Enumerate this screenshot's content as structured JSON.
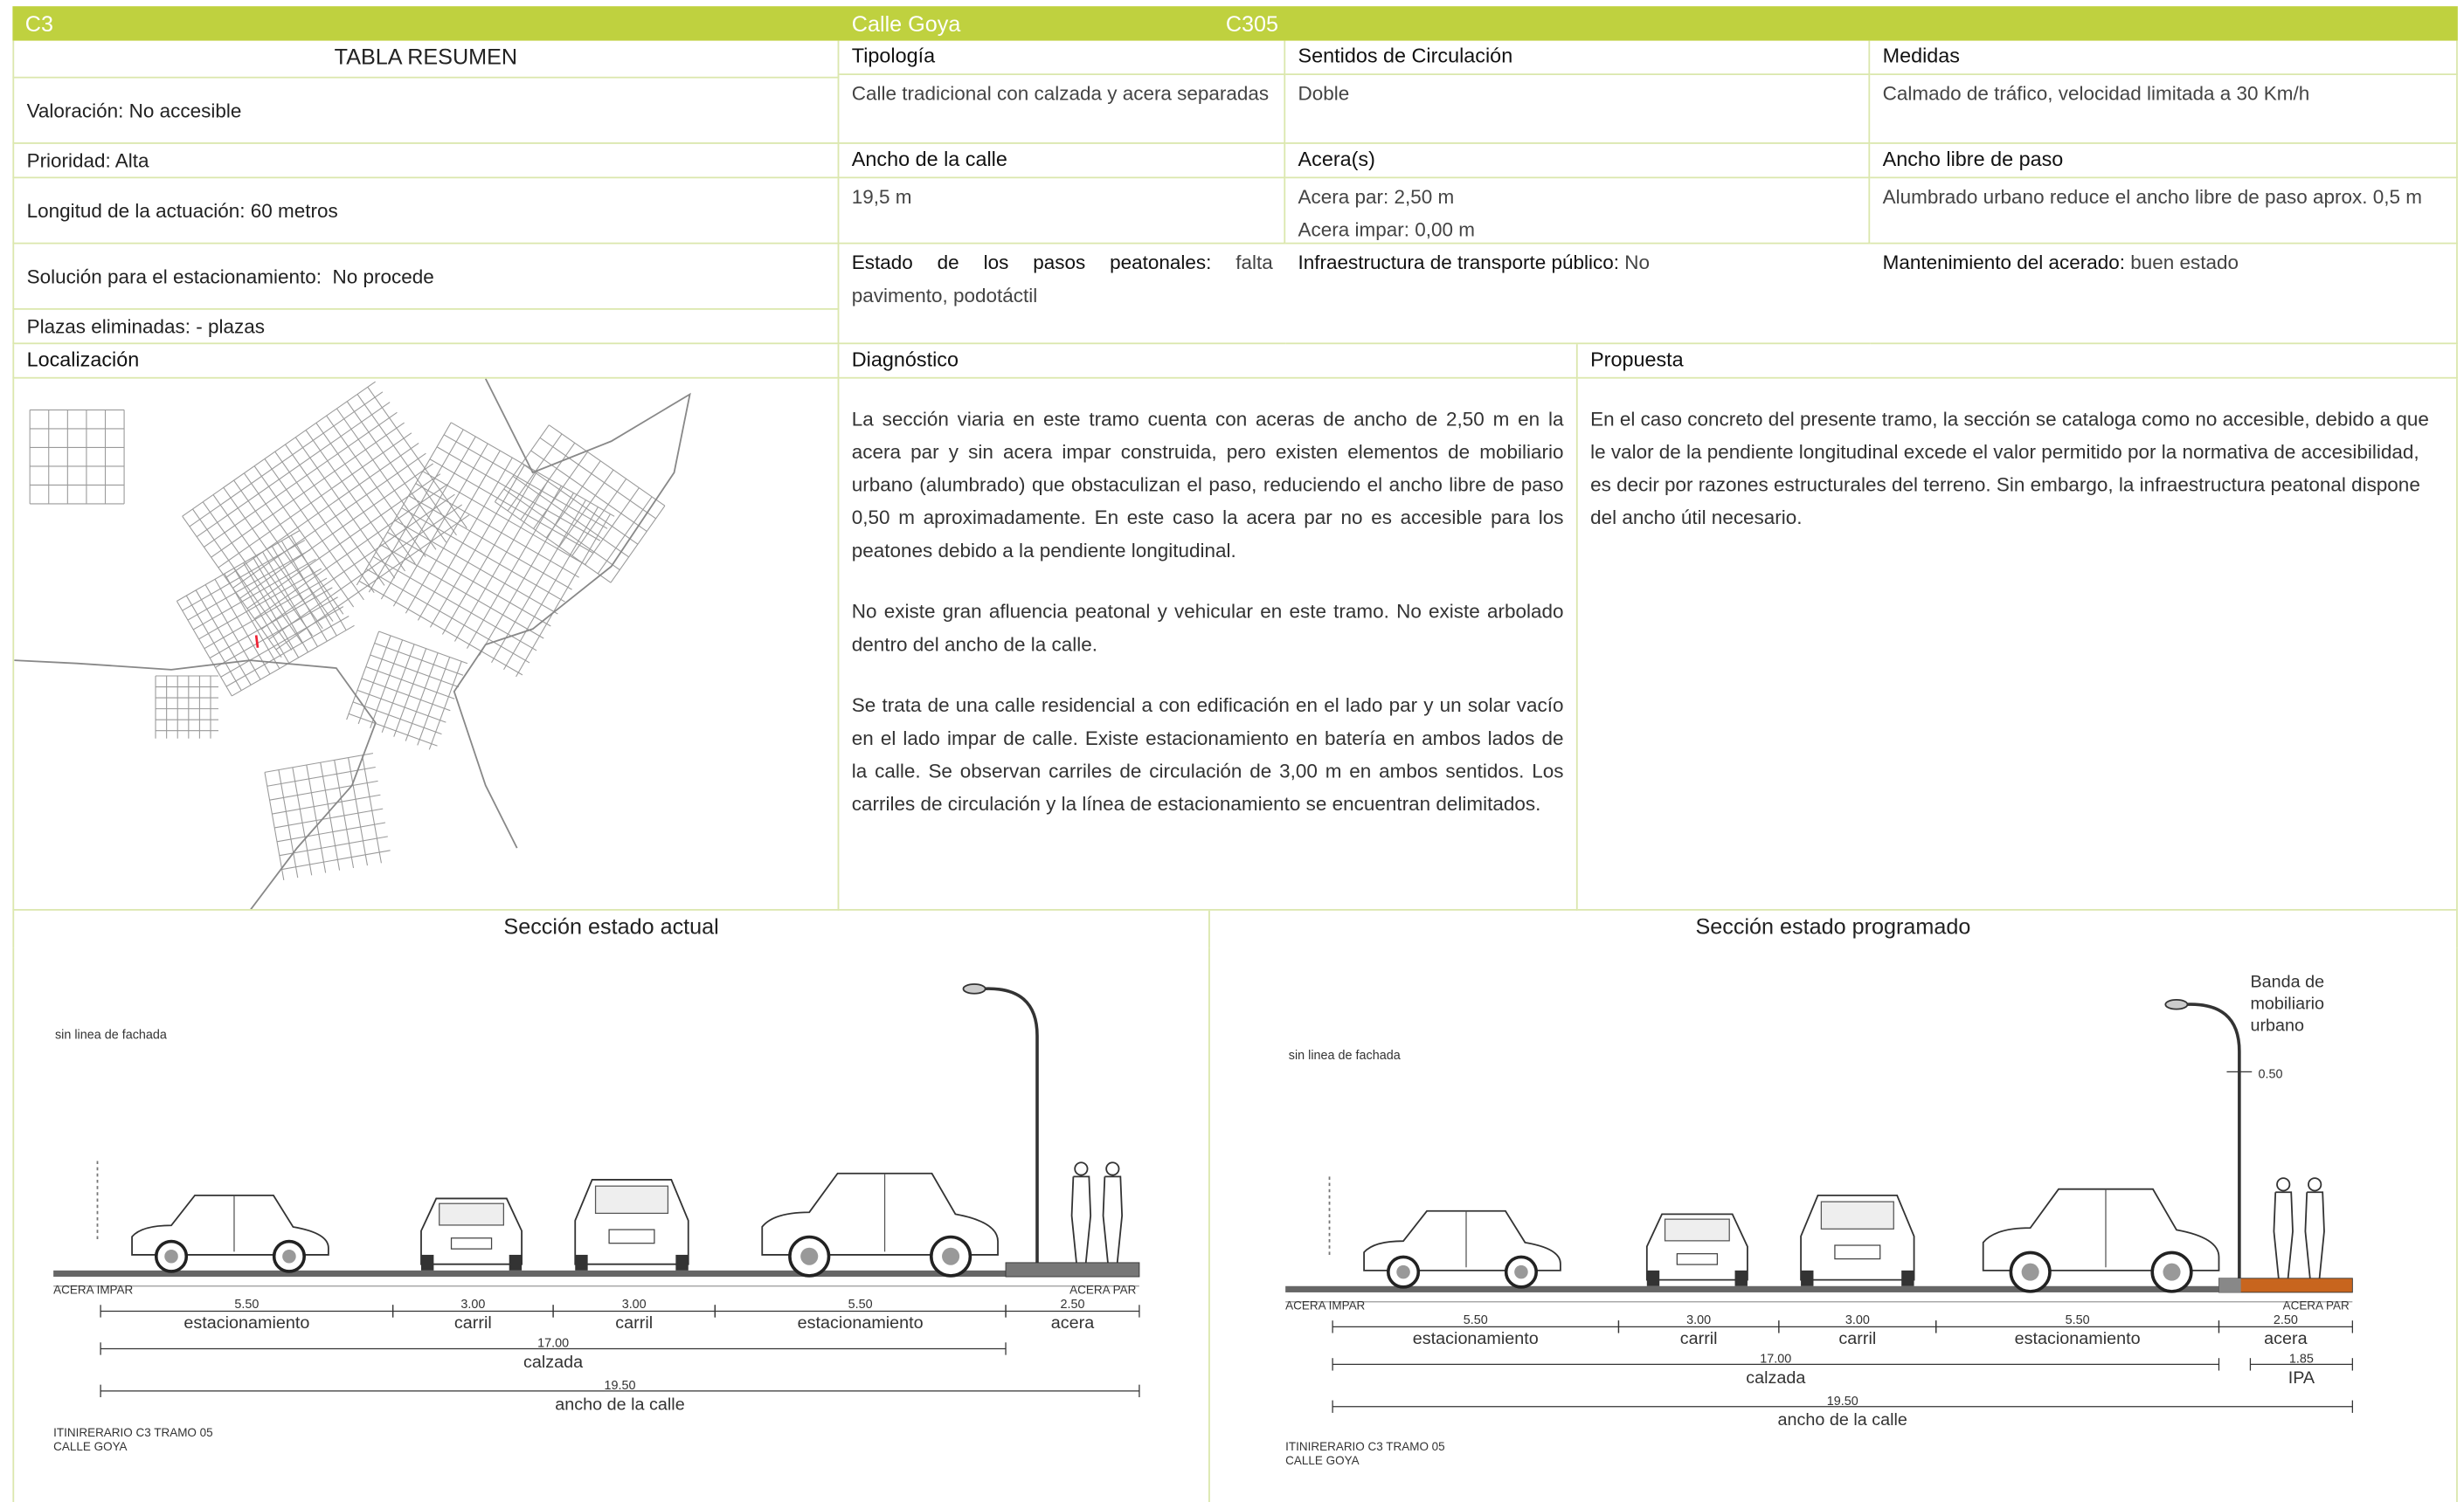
{
  "header": {
    "code": "C3",
    "street": "Calle Goya",
    "section": "C305"
  },
  "summary": {
    "title": "TABLA RESUMEN",
    "rows": [
      "Valoración: No accesible",
      "Prioridad: Alta",
      "Longitud de la actuación: 60 metros",
      "Solución para el estacionamiento:  No procede",
      "Plazas eliminadas: - plazas"
    ]
  },
  "details": {
    "tipologia": {
      "label": "Tipología",
      "value": "Calle tradicional con calzada y acera separadas"
    },
    "sentidos": {
      "label": "Sentidos de Circulación",
      "value": "Doble"
    },
    "medidas": {
      "label": "Medidas",
      "value": "Calmado de tráfico, velocidad limitada a 30 Km/h"
    },
    "ancho": {
      "label": "Ancho de la calle",
      "value": "19,5 m"
    },
    "aceras": {
      "label": "Acera(s)",
      "values": [
        "Acera par: 2,50 m",
        "Acera impar: 0,00 m"
      ]
    },
    "libre": {
      "label": "Ancho libre de paso",
      "value": "Alumbrado urbano reduce el ancho libre de paso aprox. 0,5 m"
    },
    "pasos": {
      "label": "Estado de los pasos peatonales:",
      "value": " falta pavimento, podotáctil"
    },
    "transporte": {
      "label": "Infraestructura de transporte público:",
      "value": " No"
    },
    "mantenimiento": {
      "label": "Mantenimiento del acerado:",
      "value": " buen estado"
    }
  },
  "localizacion": {
    "title": "Localización"
  },
  "diagnostico": {
    "title": "Diagnóstico",
    "paragraphs": [
      "La sección viaria en este tramo cuenta con aceras de ancho de 2,50 m en la acera par y sin acera impar construida, pero existen elementos de mobiliario urbano (alumbrado) que obstaculizan el paso, reduciendo el ancho libre de paso 0,50 m aproximadamente. En este caso la acera par no es accesible para los peatones debido a la pendiente longitudinal.",
      "No existe gran afluencia peatonal y vehicular en este tramo. No existe arbolado dentro del ancho de la calle.",
      "Se trata de una calle residencial a con edificación en el lado par y un solar vacío en el lado impar de calle. Existe estacionamiento en batería en ambos lados de la calle. Se observan carriles de circulación de 3,00 m en ambos sentidos. Los carriles de circulación y la línea de estacionamiento se encuentran delimitados."
    ]
  },
  "propuesta": {
    "title": "Propuesta",
    "paragraphs": [
      "En el caso concreto del presente tramo, la sección se cataloga como no accesible, debido a que le valor de la pendiente longitudinal excede el valor permitido por la normativa de accesibilidad, es decir por razones estructurales del terreno. Sin embargo, la infraestructura peatonal dispone del ancho útil necesario."
    ]
  },
  "sections": {
    "actual": {
      "title": "Sección estado actual",
      "facade": "sin linea de fachada",
      "left": "ACERA IMPAR",
      "right": "ACERA PAR",
      "dims": [
        {
          "value": "5.50",
          "label": "estacionamiento"
        },
        {
          "value": "3.00",
          "label": "carril"
        },
        {
          "value": "3.00",
          "label": "carril"
        },
        {
          "value": "5.50",
          "label": "estacionamiento"
        },
        {
          "value": "2.50",
          "label": "acera"
        }
      ],
      "calzada": {
        "value": "17.00",
        "label": "calzada"
      },
      "total": {
        "value": "19.50",
        "label": "ancho de la calle"
      },
      "footer": [
        "ITINIRERARIO C3 TRAMO 05",
        "CALLE GOYA"
      ]
    },
    "programado": {
      "title": "Sección estado programado",
      "facade": "sin linea de fachada",
      "left": "ACERA IMPAR",
      "right": "ACERA PAR",
      "dims": [
        {
          "value": "5.50",
          "label": "estacionamiento"
        },
        {
          "value": "3.00",
          "label": "carril"
        },
        {
          "value": "3.00",
          "label": "carril"
        },
        {
          "value": "5.50",
          "label": "estacionamiento"
        },
        {
          "value": "2.50",
          "label": "acera"
        }
      ],
      "calzada": {
        "value": "17.00",
        "label": "calzada"
      },
      "total": {
        "value": "19.50",
        "label": "ancho de la calle"
      },
      "ipa": {
        "value": "1.85",
        "label": "IPA"
      },
      "band": {
        "value": "0.50",
        "note": [
          "Banda de",
          "mobiliario",
          "urbano"
        ]
      },
      "footer": [
        "ITINIRERARIO C3 TRAMO 05",
        "CALLE GOYA"
      ]
    }
  }
}
